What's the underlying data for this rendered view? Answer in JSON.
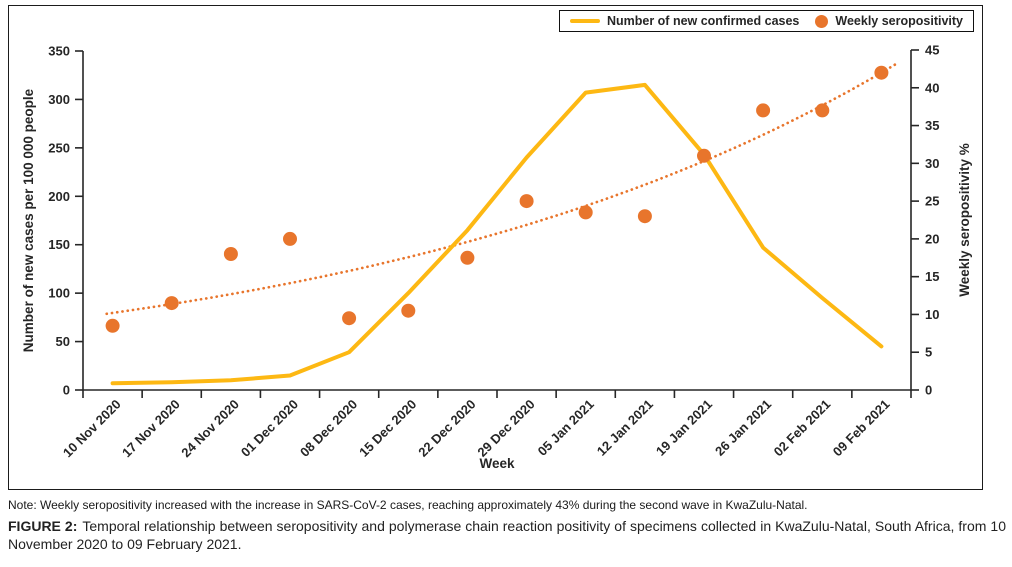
{
  "legend": {
    "items": [
      {
        "label": "Number of new confirmed cases",
        "swatch": "line",
        "color": "#FDB813"
      },
      {
        "label": "Weekly seropositivity",
        "swatch": "dot",
        "color": "#E8752C"
      }
    ]
  },
  "chart_data": {
    "type": "line",
    "title": "",
    "categories": [
      "10 Nov 2020",
      "17 Nov 2020",
      "24 Nov 2020",
      "01 Dec 2020",
      "08 Dec 2020",
      "15 Dec 2020",
      "22 Dec 2020",
      "29 Dec 2020",
      "05 Jan 2021",
      "12 Jan 2021",
      "19 Jan 2021",
      "26 Jan 2021",
      "02 Feb 2021",
      "09 Feb 2021"
    ],
    "series": [
      {
        "name": "Number of new confirmed cases",
        "type": "line",
        "axis": "left",
        "color": "#FDB813",
        "values": [
          7,
          8,
          10,
          15,
          39,
          100,
          165,
          240,
          307,
          315,
          243,
          147,
          95,
          45
        ]
      },
      {
        "name": "Weekly seropositivity",
        "type": "scatter",
        "axis": "right",
        "color": "#E8752C",
        "values": [
          8.5,
          11.5,
          18,
          20,
          9.5,
          10.5,
          17.5,
          25,
          23.5,
          23,
          31,
          37,
          37,
          42
        ]
      },
      {
        "name": "Seropositivity trendline",
        "type": "dotted-trend",
        "axis": "right",
        "color": "#E8752C",
        "trend": {
          "kind": "exponential",
          "start": 10.2,
          "end": 42,
          "extend_from": -0.1,
          "extend_to": 13.35
        }
      }
    ],
    "left_axis": {
      "label": "Number of new cases per 100 000 people",
      "min": 0,
      "max": 350,
      "ticks": [
        0,
        50,
        100,
        150,
        200,
        250,
        300,
        350
      ]
    },
    "right_axis": {
      "label": "Weekly seropositivity %",
      "min": 0,
      "max": 45,
      "ticks": [
        0,
        5,
        10,
        15,
        20,
        25,
        30,
        35,
        40,
        45
      ]
    },
    "x_axis": {
      "label": "Week"
    },
    "grid": false,
    "legend_position": "top-right"
  },
  "captions": {
    "note": "Note: Weekly seropositivity increased with the increase in SARS-CoV-2 cases, reaching approximately 43% during the second wave in KwaZulu-Natal.",
    "figure_label": "FIGURE 2:",
    "figure_text": "Temporal relationship between seropositivity and polymerase chain reaction positivity of specimens collected in KwaZulu-Natal, South Africa, from 10 November 2020 to 09 February 2021."
  }
}
